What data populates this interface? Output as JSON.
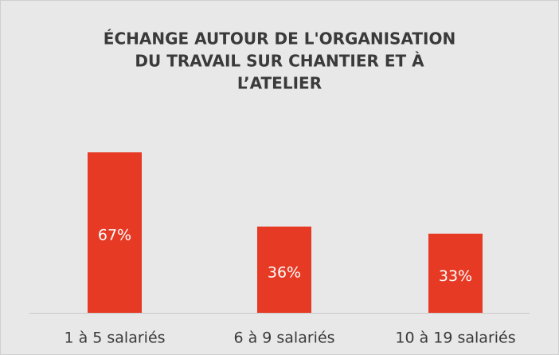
{
  "chart_data": {
    "type": "bar",
    "title": [
      "ÉCHANGE AUTOUR DE L'ORGANISATION",
      "DU TRAVAIL SUR CHANTIER ET À",
      "L’ATELIER"
    ],
    "categories": [
      "1 à 5 salariés",
      "6 à 9 salariés",
      "10 à 19 salariés"
    ],
    "values": [
      67,
      36,
      33
    ],
    "value_labels": [
      "67%",
      "36%",
      "33%"
    ],
    "color": "#e63a25",
    "ylim": [
      0,
      100
    ]
  }
}
